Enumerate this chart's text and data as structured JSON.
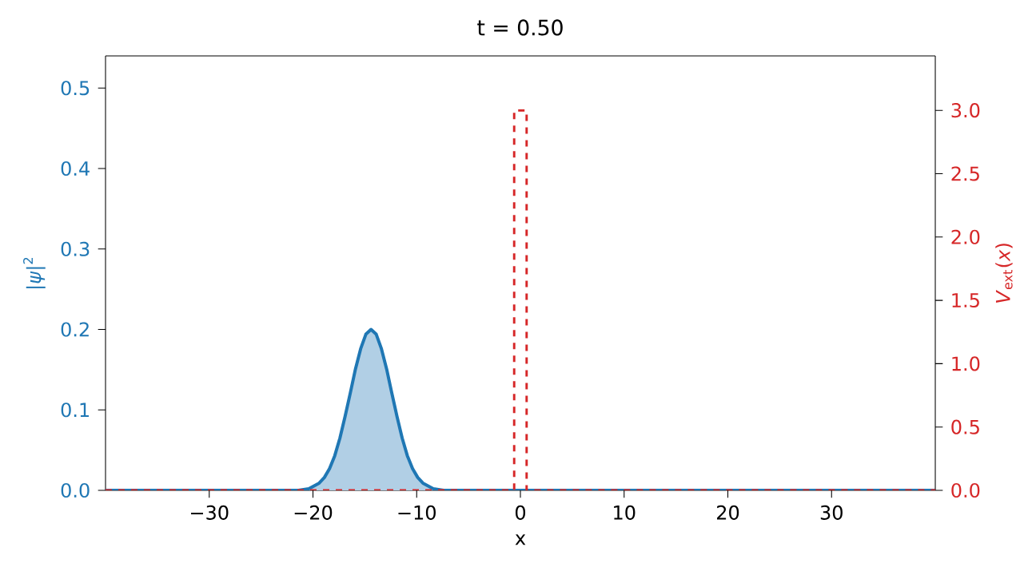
{
  "chart_data": {
    "type": "line",
    "title": "t = 0.50",
    "xlabel": "x",
    "ylabel": "|*ψ*|$^{2}$",
    "y2label": "*V*$_{ext}$(*x*)",
    "xlim": [
      -40,
      40
    ],
    "ylim": [
      0,
      0.54
    ],
    "y2lim": [
      0,
      3.43
    ],
    "xticks": [
      {
        "value": -30,
        "label": "−30"
      },
      {
        "value": -20,
        "label": "−20"
      },
      {
        "value": -10,
        "label": "−10"
      },
      0,
      10,
      20,
      30
    ],
    "yticks": [
      {
        "value": 0,
        "label": "0.0"
      },
      {
        "value": 0.1,
        "label": "0.1"
      },
      {
        "value": 0.2,
        "label": "0.2"
      },
      {
        "value": 0.3,
        "label": "0.3"
      },
      {
        "value": 0.4,
        "label": "0.4"
      },
      {
        "value": 0.5,
        "label": "0.5"
      }
    ],
    "y2ticks": [
      {
        "value": 0,
        "label": "0.0"
      },
      {
        "value": 0.5,
        "label": "0.5"
      },
      {
        "value": 1,
        "label": "1.0"
      },
      {
        "value": 1.5,
        "label": "1.5"
      },
      {
        "value": 2,
        "label": "2.0"
      },
      {
        "value": 2.5,
        "label": "2.5"
      },
      {
        "value": 3,
        "label": "3.0"
      }
    ],
    "series": [
      {
        "type": "area",
        "color": "#1f77b4",
        "line_style": "solid",
        "x": [
          -40,
          -21.4,
          -20.4,
          -19.4,
          -18.9,
          -18.4,
          -17.9,
          -17.4,
          -16.9,
          -16.4,
          -15.9,
          -15.4,
          -14.9,
          -14.4,
          -13.9,
          -13.4,
          -12.9,
          -12.4,
          -11.9,
          -11.4,
          -10.9,
          -10.4,
          -9.9,
          -9.4,
          -8.4,
          -7.4,
          40
        ],
        "values": [
          0,
          0,
          0.002,
          0.009,
          0.016,
          0.027,
          0.043,
          0.065,
          0.092,
          0.121,
          0.151,
          0.176,
          0.194,
          0.2,
          0.194,
          0.176,
          0.151,
          0.121,
          0.092,
          0.065,
          0.043,
          0.027,
          0.016,
          0.009,
          0.002,
          0,
          0
        ]
      },
      {
        "axis": "y2",
        "color": "#d62728",
        "line_style": "dashed",
        "x": [
          -40,
          -0.6,
          -0.6,
          0.6,
          0.6,
          40
        ],
        "values": [
          0,
          0,
          3,
          3,
          0,
          0
        ]
      }
    ]
  }
}
